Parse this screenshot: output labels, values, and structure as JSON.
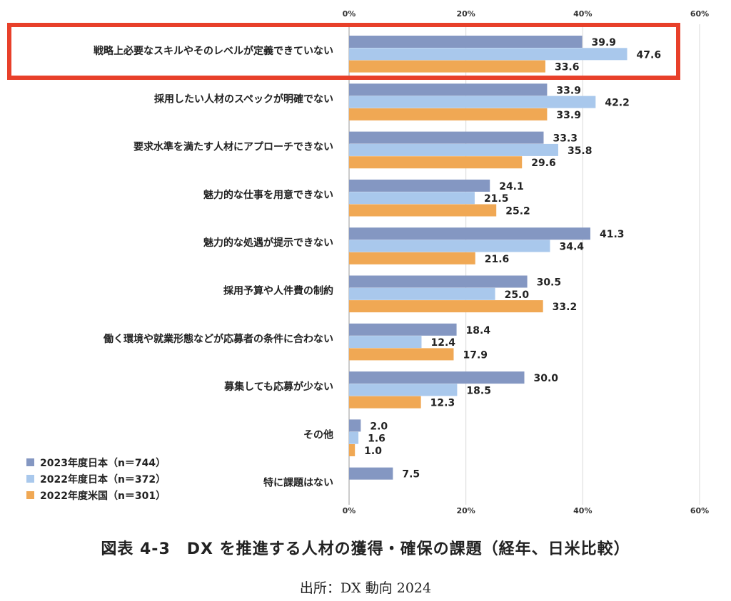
{
  "chart_data": {
    "type": "bar",
    "orientation": "horizontal",
    "categories": [
      "戦略上必要なスキルやそのレベルが定義できていない",
      "採用したい人材のスペックが明確でない",
      "要求水準を満たす人材にアプローチできない",
      "魅力的な仕事を用意できない",
      "魅力的な処遇が提示できない",
      "採用予算や人件費の制約",
      "働く環境や就業形態などが応募者の条件に合わない",
      "募集しても応募が少ない",
      "その他",
      "特に課題はない"
    ],
    "series": [
      {
        "name": "2023年度日本（n＝744）",
        "color": "#8497c2",
        "values": [
          39.9,
          33.9,
          33.3,
          24.1,
          41.3,
          30.5,
          18.4,
          30.0,
          2.0,
          7.5
        ],
        "labels": [
          "39.9",
          "33.9",
          "33.3",
          "24.1",
          "41.3",
          "30.5",
          "18.4",
          "30.0",
          "2.0",
          "7.5"
        ]
      },
      {
        "name": "2022年度日本（n＝372）",
        "color": "#a9c8ec",
        "values": [
          47.6,
          42.2,
          35.8,
          21.5,
          34.4,
          25.0,
          12.4,
          18.5,
          1.6,
          null
        ],
        "labels": [
          "47.6",
          "42.2",
          "35.8",
          "21.5",
          "34.4",
          "25.0",
          "12.4",
          "18.5",
          "1.6",
          ""
        ]
      },
      {
        "name": "2022年度米国（n＝301）",
        "color": "#f0a854",
        "values": [
          33.6,
          33.9,
          29.6,
          25.2,
          21.6,
          33.2,
          17.9,
          12.3,
          1.0,
          null
        ],
        "labels": [
          "33.6",
          "33.9",
          "29.6",
          "25.2",
          "21.6",
          "33.2",
          "17.9",
          "12.3",
          "1.0",
          ""
        ]
      }
    ],
    "xlim": [
      0,
      60
    ],
    "xticks": [
      "0%",
      "20%",
      "40%",
      "60%"
    ],
    "grid": true,
    "legend": "bottom-left",
    "highlight": {
      "category_index": 0,
      "color": "#e8402a"
    }
  },
  "caption": "図表 4-3　DX を推進する人材の獲得・確保の課題（経年、日米比較）",
  "source": "出所：DX 動向 2024"
}
